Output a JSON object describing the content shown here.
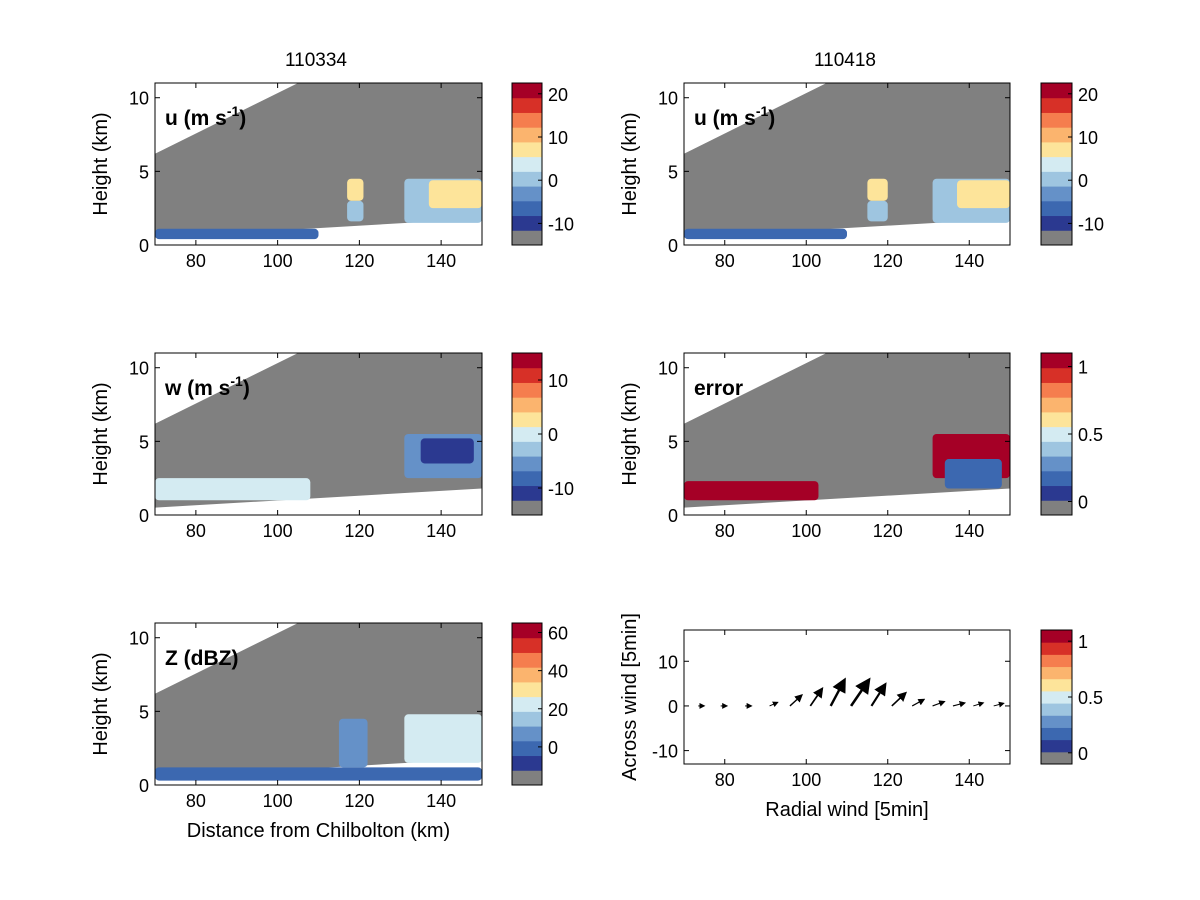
{
  "figure": {
    "column_titles": [
      "110334",
      "110418"
    ]
  },
  "colorbar_colors": [
    "#808080",
    "#2b3990",
    "#3c68b0",
    "#6591c8",
    "#9ec5e0",
    "#d4ebf2",
    "#fde49a",
    "#fbb46e",
    "#f57d4e",
    "#d73027",
    "#a50026"
  ],
  "colors": {
    "background_gray": "#808080",
    "axis": "#000000",
    "arrow": "#000000"
  },
  "chart_data": [
    {
      "id": "u-110334",
      "type": "heatmap",
      "inlabel": "u (m s",
      "inlabel_sup": "-1",
      "inlabel_tail": ")",
      "ylabel": "Height (km)",
      "xlabel": "",
      "xlim": [
        70,
        150
      ],
      "ylim": [
        0,
        11
      ],
      "xticks": [
        "80",
        "100",
        "120",
        "140"
      ],
      "yticks": [
        "0",
        "5",
        "10"
      ],
      "colorbar": {
        "ticks": [
          "20",
          "10",
          "0",
          "-10"
        ],
        "range": [
          -15,
          22.5
        ]
      },
      "regions": [
        {
          "x": [
            70,
            110
          ],
          "y": [
            0.4,
            1.1
          ],
          "value": -5
        },
        {
          "x": [
            117,
            121
          ],
          "y": [
            3,
            4.5
          ],
          "value": 8
        },
        {
          "x": [
            117,
            121
          ],
          "y": [
            1.6,
            3
          ],
          "value": 2
        },
        {
          "x": [
            131,
            150
          ],
          "y": [
            1.5,
            4.5
          ],
          "value": 2
        },
        {
          "x": [
            137,
            150
          ],
          "y": [
            2.5,
            4.4
          ],
          "value": 8
        }
      ]
    },
    {
      "id": "u-110418",
      "type": "heatmap",
      "inlabel": "u (m s",
      "inlabel_sup": "-1",
      "inlabel_tail": ")",
      "ylabel": "Height (km)",
      "xlabel": "",
      "xlim": [
        70,
        150
      ],
      "ylim": [
        0,
        11
      ],
      "xticks": [
        "80",
        "100",
        "120",
        "140"
      ],
      "yticks": [
        "0",
        "5",
        "10"
      ],
      "colorbar": {
        "ticks": [
          "20",
          "10",
          "0",
          "-10"
        ],
        "range": [
          -15,
          22.5
        ]
      },
      "regions": [
        {
          "x": [
            70,
            110
          ],
          "y": [
            0.4,
            1.1
          ],
          "value": -5
        },
        {
          "x": [
            115,
            120
          ],
          "y": [
            3,
            4.5
          ],
          "value": 8
        },
        {
          "x": [
            115,
            120
          ],
          "y": [
            1.6,
            3
          ],
          "value": 2
        },
        {
          "x": [
            131,
            150
          ],
          "y": [
            1.5,
            4.5
          ],
          "value": 2
        },
        {
          "x": [
            137,
            150
          ],
          "y": [
            2.5,
            4.4
          ],
          "value": 8
        }
      ]
    },
    {
      "id": "w-110334",
      "type": "heatmap",
      "inlabel": "w (m s",
      "inlabel_sup": "-1",
      "inlabel_tail": ")",
      "ylabel": "Height (km)",
      "xlabel": "",
      "xlim": [
        70,
        150
      ],
      "ylim": [
        0,
        11
      ],
      "xticks": [
        "80",
        "100",
        "120",
        "140"
      ],
      "yticks": [
        "0",
        "5",
        "10"
      ],
      "colorbar": {
        "ticks": [
          "10",
          "0",
          "-10"
        ],
        "range": [
          -15,
          15
        ]
      },
      "regions": [
        {
          "x": [
            70,
            108
          ],
          "y": [
            1.0,
            2.5
          ],
          "value": 1
        },
        {
          "x": [
            131,
            150
          ],
          "y": [
            2.5,
            5.5
          ],
          "value": -6
        },
        {
          "x": [
            135,
            148
          ],
          "y": [
            3.5,
            5.2
          ],
          "value": -12
        }
      ]
    },
    {
      "id": "error-110418",
      "type": "heatmap",
      "inlabel": "error",
      "inlabel_sup": "",
      "inlabel_tail": "",
      "ylabel": "Height (km)",
      "xlabel": "",
      "xlim": [
        70,
        150
      ],
      "ylim": [
        0,
        11
      ],
      "xticks": [
        "80",
        "100",
        "120",
        "140"
      ],
      "yticks": [
        "0",
        "5",
        "10"
      ],
      "colorbar": {
        "ticks": [
          "1",
          "0.5",
          "0"
        ],
        "range": [
          -0.1,
          1.1
        ]
      },
      "regions": [
        {
          "x": [
            70,
            103
          ],
          "y": [
            1.0,
            2.3
          ],
          "value": 1.05
        },
        {
          "x": [
            131,
            150
          ],
          "y": [
            2.5,
            5.5
          ],
          "value": 1.05
        },
        {
          "x": [
            134,
            148
          ],
          "y": [
            1.8,
            3.8
          ],
          "value": 0.2
        }
      ]
    },
    {
      "id": "Z-110334",
      "type": "heatmap",
      "inlabel": "Z (dBZ)",
      "inlabel_sup": "",
      "inlabel_tail": "",
      "ylabel": "Height (km)",
      "xlabel": "Distance from Chilbolton (km)",
      "xlim": [
        70,
        150
      ],
      "ylim": [
        0,
        11
      ],
      "xticks": [
        "80",
        "100",
        "120",
        "140"
      ],
      "yticks": [
        "0",
        "5",
        "10"
      ],
      "colorbar": {
        "ticks": [
          "60",
          "40",
          "20",
          "0"
        ],
        "range": [
          -20,
          65
        ]
      },
      "regions": [
        {
          "x": [
            70,
            150
          ],
          "y": [
            0.3,
            1.2
          ],
          "value": 0
        },
        {
          "x": [
            115,
            122
          ],
          "y": [
            1.2,
            4.5
          ],
          "value": 10
        },
        {
          "x": [
            131,
            150
          ],
          "y": [
            1.5,
            4.8
          ],
          "value": 20
        }
      ]
    },
    {
      "id": "wind-110418",
      "type": "scatter",
      "inlabel": "",
      "inlabel_sup": "",
      "inlabel_tail": "",
      "ylabel": "Across wind [5min]",
      "xlabel": "Radial wind [5min]",
      "xlim": [
        70,
        150
      ],
      "ylim": [
        -13,
        17
      ],
      "xticks": [
        "80",
        "100",
        "120",
        "140"
      ],
      "yticks": [
        "-10",
        "0",
        "10"
      ],
      "colorbar": {
        "ticks": [
          "1",
          "0.5",
          "0"
        ],
        "range": [
          -0.1,
          1.1
        ]
      },
      "arrows": [
        {
          "x": 73.5,
          "y": 0,
          "u": 1.4,
          "v": 0
        },
        {
          "x": 79,
          "y": 0,
          "u": 1.5,
          "v": 0
        },
        {
          "x": 85,
          "y": 0,
          "u": 1.5,
          "v": 0
        },
        {
          "x": 91,
          "y": 0,
          "u": 2,
          "v": 0.8
        },
        {
          "x": 96,
          "y": 0,
          "u": 3,
          "v": 2.5
        },
        {
          "x": 101,
          "y": 0,
          "u": 3,
          "v": 4
        },
        {
          "x": 106,
          "y": 0,
          "u": 3.5,
          "v": 6
        },
        {
          "x": 111,
          "y": 0,
          "u": 4.5,
          "v": 6
        },
        {
          "x": 116,
          "y": 0,
          "u": 3.5,
          "v": 5
        },
        {
          "x": 121,
          "y": 0,
          "u": 3.5,
          "v": 3
        },
        {
          "x": 126,
          "y": 0,
          "u": 3,
          "v": 1.5
        },
        {
          "x": 131,
          "y": 0,
          "u": 3,
          "v": 1
        },
        {
          "x": 136,
          "y": 0,
          "u": 3,
          "v": 0.7
        },
        {
          "x": 141,
          "y": 0,
          "u": 2.5,
          "v": 0.7
        },
        {
          "x": 146,
          "y": 0,
          "u": 2.5,
          "v": 0.6
        }
      ]
    }
  ]
}
